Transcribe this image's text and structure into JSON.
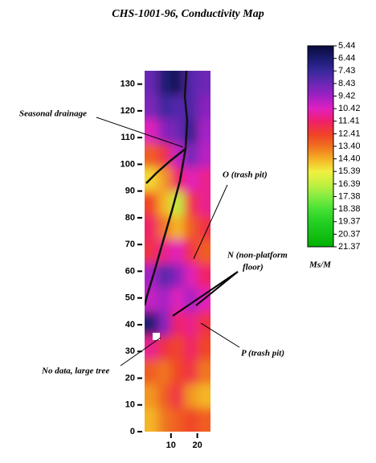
{
  "chart_data": {
    "type": "heatmap",
    "title": "CHS-1001-96, Conductivity Map",
    "xedges": [
      0,
      5,
      10,
      15,
      20,
      25
    ],
    "yedges": [
      0,
      9,
      18,
      27,
      36,
      45,
      54,
      63,
      72,
      81,
      90,
      99,
      108,
      117,
      126,
      135
    ],
    "values": [
      [
        14.5,
        13.5,
        13,
        12.5,
        13
      ],
      [
        14,
        13,
        12,
        14,
        14.5
      ],
      [
        13,
        13.5,
        12.5,
        12,
        13.5
      ],
      [
        11,
        12,
        12.5,
        11.5,
        12.5
      ],
      [
        6.5,
        9,
        11.5,
        11,
        12
      ],
      [
        10,
        9.5,
        10.5,
        9.5,
        10.5
      ],
      [
        9.5,
        8,
        9,
        10.5,
        11.5
      ],
      [
        12,
        11,
        10.5,
        12,
        13
      ],
      [
        11.5,
        13.5,
        14.5,
        13,
        12
      ],
      [
        12.5,
        14.5,
        16.5,
        12,
        11
      ],
      [
        15,
        14,
        11.5,
        10.5,
        11
      ],
      [
        13,
        12,
        10,
        8.5,
        9.8
      ],
      [
        10.5,
        9,
        8.5,
        7,
        9.5
      ],
      [
        8.8,
        7.5,
        8,
        7.8,
        9
      ],
      [
        8.4,
        6.5,
        6,
        8,
        8.5
      ]
    ],
    "xlim": [
      0,
      25
    ],
    "ylim": [
      0,
      135
    ],
    "xticks": [
      10,
      20
    ],
    "yticks": [
      0,
      10,
      20,
      30,
      40,
      50,
      60,
      70,
      80,
      90,
      100,
      110,
      120,
      130
    ],
    "colorbar": {
      "unit": "Ms/M",
      "ticks": [
        5.44,
        6.44,
        7.43,
        8.43,
        9.42,
        10.42,
        11.41,
        12.41,
        {
          "value": 13.4,
          "label": "13.40"
        },
        {
          "value": 14.4,
          "label": "14.40"
        },
        15.39,
        16.39,
        17.38,
        18.38,
        19.37,
        20.37,
        21.37
      ],
      "colors": [
        "#0a0a3c",
        "#1a1a70",
        "#38289c",
        "#6a28b4",
        "#a020c4",
        "#e020c0",
        "#f0206c",
        "#f04028",
        "#f07020",
        "#f4b024",
        "#f0f040",
        "#c4f040",
        "#84ec40",
        "#48e034",
        "#24d024",
        "#14c014",
        "#00b000"
      ]
    },
    "annotations": [
      "Seasonal drainage",
      "O (trash pit)",
      "N (non-platform",
      "floor)",
      "No data, large tree",
      "P (trash pit)"
    ]
  }
}
